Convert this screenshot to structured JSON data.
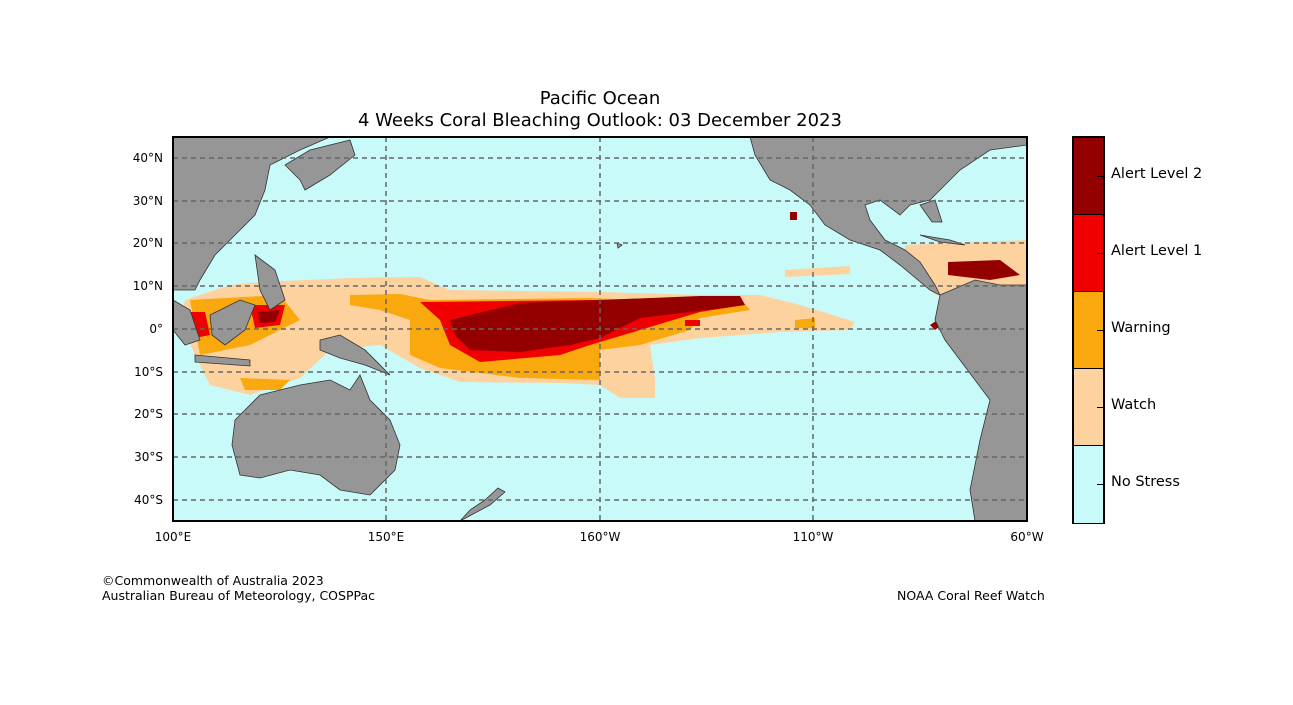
{
  "title": "Pacific Ocean",
  "subtitle": "4 Weeks Coral Bleaching Outlook: 03 December 2023",
  "lat_labels": [
    "40°N",
    "30°N",
    "20°N",
    "10°N",
    "0°",
    "10°S",
    "20°S",
    "30°S",
    "40°S"
  ],
  "lon_labels": [
    "100°E",
    "150°E",
    "160°W",
    "110°W",
    "60°W"
  ],
  "legend": [
    {
      "label": "Alert Level 2",
      "color": "#940000"
    },
    {
      "label": "Alert Level 1",
      "color": "#f00000"
    },
    {
      "label": "Warning",
      "color": "#f9a90d"
    },
    {
      "label": "Watch",
      "color": "#fdd29f"
    },
    {
      "label": "No Stress",
      "color": "#c8fafa"
    }
  ],
  "footer": {
    "copyright": "©Commonwealth of Australia 2023",
    "agency": "Australian Bureau of Meteorology, COSPPac",
    "credit": "NOAA Coral Reef Watch"
  },
  "colors": {
    "land": "#969696",
    "ocean": "#c8fafa"
  }
}
